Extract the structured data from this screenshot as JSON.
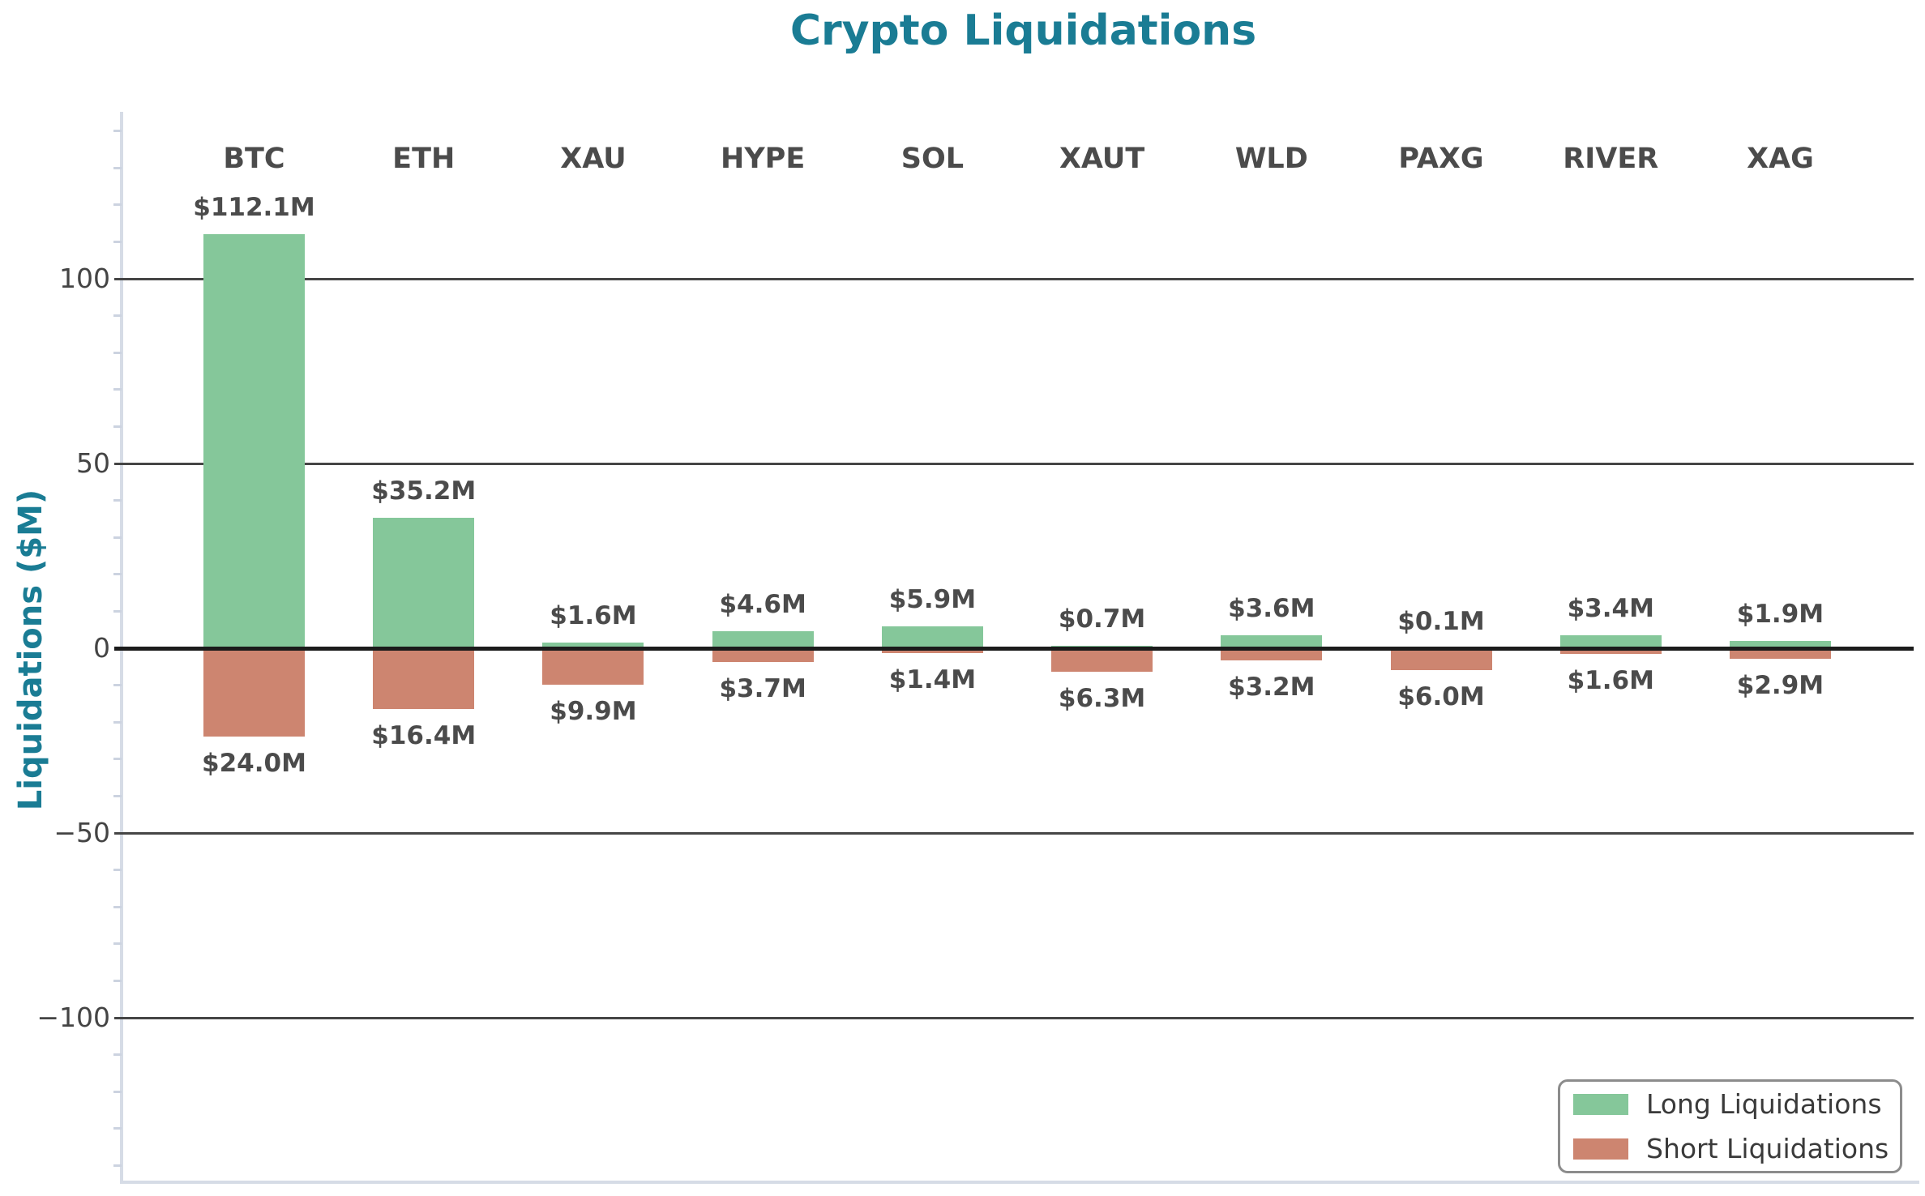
{
  "title": "Crypto Liquidations",
  "y_axis_label": "Liquidations ($M)",
  "colors": {
    "long_bar": "#85c79a",
    "short_bar": "#cd8570",
    "title_teal": "#1a7c94",
    "grid_line": "#454545",
    "zero_line": "#1b1b1b",
    "axis_spine": "#d6dce6",
    "minor_tick": "#ccd3e0",
    "text_dark": "#4b4b4b",
    "tick_text": "#444444",
    "legend_border": "#8c8c8c",
    "legend_text": "#3a3a3a"
  },
  "chart_data": {
    "type": "bar",
    "title": "Crypto Liquidations",
    "xlabel": "",
    "ylabel": "Liquidations ($M)",
    "categories": [
      "BTC",
      "ETH",
      "XAU",
      "HYPE",
      "SOL",
      "XAUT",
      "WLD",
      "PAXG",
      "RIVER",
      "XAG"
    ],
    "series": [
      {
        "name": "Long Liquidations",
        "direction": "up",
        "values": [
          112.1,
          35.2,
          1.6,
          4.6,
          5.9,
          0.7,
          3.6,
          0.1,
          3.4,
          1.9
        ]
      },
      {
        "name": "Short Liquidations",
        "direction": "down",
        "values": [
          24.0,
          16.4,
          9.9,
          3.7,
          1.4,
          6.3,
          3.2,
          6.0,
          1.6,
          2.9
        ]
      }
    ],
    "bar_value_labels": {
      "long": [
        "$112.1M",
        "$35.2M",
        "$1.6M",
        "$4.6M",
        "$5.9M",
        "$0.7M",
        "$3.6M",
        "$0.1M",
        "$3.4M",
        "$1.9M"
      ],
      "short": [
        "$24.0M",
        "$16.4M",
        "$9.9M",
        "$3.7M",
        "$1.4M",
        "$6.3M",
        "$3.2M",
        "$6.0M",
        "$1.6M",
        "$2.9M"
      ]
    },
    "y_ticks": [
      {
        "value": 100,
        "label": "100"
      },
      {
        "value": 50,
        "label": "50"
      },
      {
        "value": 0,
        "label": "0"
      },
      {
        "value": -50,
        "label": "−50"
      },
      {
        "value": -100,
        "label": "−100"
      }
    ],
    "minor_tick_step": 10,
    "ylim": [
      -145,
      145
    ],
    "grid": true,
    "legend_position": "lower right"
  },
  "legend": {
    "long_label": "Long Liquidations",
    "short_label": "Short Liquidations"
  }
}
